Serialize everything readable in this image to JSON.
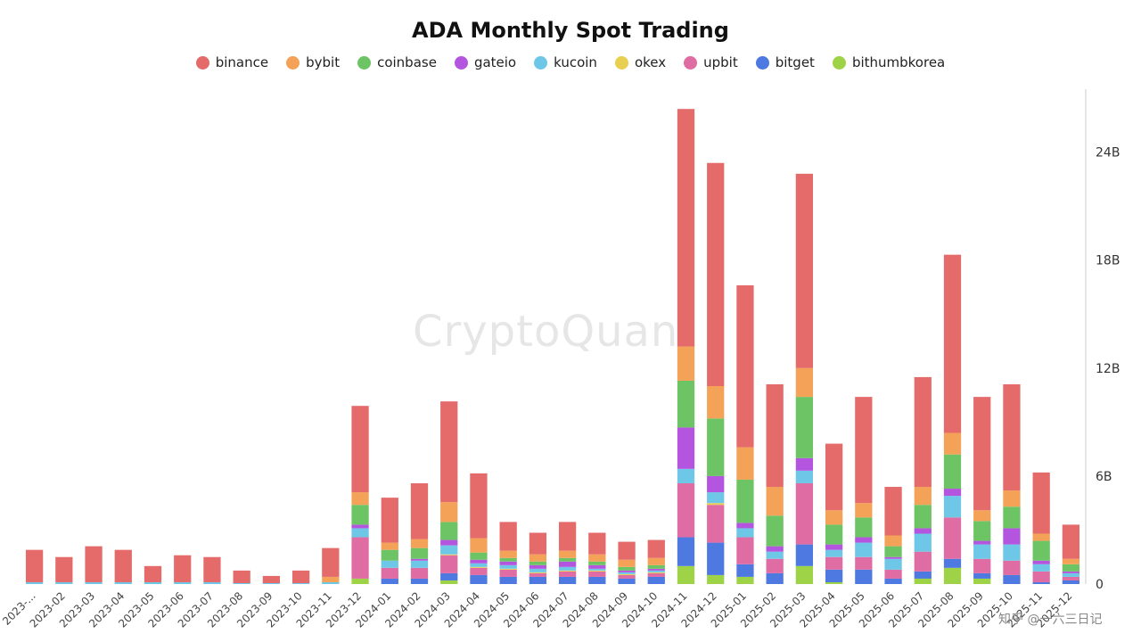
{
  "chart_data": {
    "type": "bar",
    "stacked": true,
    "title": "ADA Monthly Spot Trading",
    "categories": [
      "2023-...",
      "2023-02",
      "2023-03",
      "2023-04",
      "2023-05",
      "2023-06",
      "2023-07",
      "2023-08",
      "2023-09",
      "2023-10",
      "2023-11",
      "2023-12",
      "2024-01",
      "2024-02",
      "2024-03",
      "2024-04",
      "2024-05",
      "2024-06",
      "2024-07",
      "2024-08",
      "2024-09",
      "2024-10",
      "2024-11",
      "2024-12",
      "2025-01",
      "2025-02",
      "2025-03",
      "2025-04",
      "2025-05",
      "2025-06",
      "2025-07",
      "2025-08",
      "2025-09",
      "2025-10",
      "2025-11",
      "2025-12"
    ],
    "ylim": [
      0,
      27.5
    ],
    "ytick_values": [
      0,
      6,
      12,
      18,
      24
    ],
    "ytick_labels": [
      "0",
      "6B",
      "12B",
      "18B",
      "24B"
    ],
    "y_axis_side": "right",
    "legend_position": "top-center",
    "grid": false,
    "series": [
      {
        "name": "bithumbkorea",
        "color": "#9ed247",
        "values": [
          0,
          0,
          0,
          0,
          0,
          0,
          0,
          0,
          0,
          0,
          0,
          0.3,
          0,
          0,
          0.2,
          0,
          0,
          0,
          0,
          0,
          0,
          0,
          1.0,
          0.5,
          0.4,
          0,
          1.0,
          0.1,
          0,
          0,
          0.3,
          0.9,
          0.3,
          0,
          0,
          0
        ]
      },
      {
        "name": "bitget",
        "color": "#4d79e0",
        "values": [
          0,
          0,
          0,
          0,
          0,
          0,
          0,
          0,
          0,
          0,
          0,
          0,
          0.3,
          0.3,
          0.4,
          0.5,
          0.4,
          0.4,
          0.4,
          0.4,
          0.3,
          0.4,
          1.6,
          1.8,
          0.7,
          0.6,
          1.2,
          0.7,
          0.8,
          0.3,
          0.4,
          0.5,
          0.3,
          0.5,
          0.1,
          0.2
        ]
      },
      {
        "name": "upbit",
        "color": "#e06ca4",
        "values": [
          0,
          0,
          0,
          0,
          0,
          0,
          0,
          0,
          0,
          0,
          0,
          2.3,
          0.6,
          0.6,
          1.0,
          0.4,
          0.4,
          0.2,
          0.3,
          0.3,
          0.2,
          0.2,
          3.0,
          2.1,
          1.5,
          0.8,
          3.4,
          0.7,
          0.7,
          0.5,
          1.1,
          2.3,
          0.8,
          0.8,
          0.6,
          0.2
        ]
      },
      {
        "name": "okex",
        "color": "#e8cf50",
        "values": [
          0,
          0,
          0,
          0,
          0,
          0,
          0,
          0,
          0,
          0,
          0,
          0,
          0,
          0,
          0.05,
          0.05,
          0.05,
          0.05,
          0.05,
          0.05,
          0.05,
          0.05,
          0,
          0.1,
          0,
          0,
          0,
          0,
          0,
          0,
          0,
          0,
          0,
          0,
          0,
          0
        ]
      },
      {
        "name": "kucoin",
        "color": "#6ec7e6",
        "values": [
          0.1,
          0.1,
          0.1,
          0.1,
          0.1,
          0.1,
          0.1,
          0.05,
          0.05,
          0.05,
          0.1,
          0.5,
          0.4,
          0.4,
          0.5,
          0.2,
          0.2,
          0.2,
          0.2,
          0.1,
          0.1,
          0.1,
          0.8,
          0.6,
          0.5,
          0.4,
          0.7,
          0.4,
          0.8,
          0.6,
          1.0,
          1.2,
          0.8,
          0.9,
          0.4,
          0.2
        ]
      },
      {
        "name": "gateio",
        "color": "#b455e0",
        "values": [
          0,
          0,
          0,
          0,
          0,
          0,
          0,
          0,
          0,
          0,
          0,
          0.2,
          0,
          0.1,
          0.3,
          0.2,
          0.2,
          0.2,
          0.3,
          0.2,
          0.1,
          0.1,
          2.3,
          0.9,
          0.3,
          0.3,
          0.7,
          0.3,
          0.3,
          0.1,
          0.3,
          0.4,
          0.2,
          0.9,
          0.2,
          0.1
        ]
      },
      {
        "name": "coinbase",
        "color": "#6dc464",
        "values": [
          0,
          0,
          0,
          0,
          0,
          0,
          0,
          0,
          0,
          0,
          0,
          1.1,
          0.6,
          0.6,
          1.0,
          0.4,
          0.2,
          0.2,
          0.2,
          0.2,
          0.2,
          0.2,
          2.6,
          3.2,
          2.4,
          1.7,
          3.4,
          1.1,
          1.1,
          0.6,
          1.3,
          1.9,
          1.1,
          1.2,
          1.1,
          0.4
        ]
      },
      {
        "name": "bybit",
        "color": "#f4a258",
        "values": [
          0,
          0,
          0,
          0,
          0,
          0,
          0,
          0,
          0,
          0,
          0.3,
          0.7,
          0.4,
          0.5,
          1.1,
          0.8,
          0.4,
          0.4,
          0.4,
          0.4,
          0.4,
          0.4,
          1.9,
          1.8,
          1.8,
          1.6,
          1.6,
          0.8,
          0.8,
          0.6,
          1.0,
          1.2,
          0.6,
          0.9,
          0.4,
          0.3
        ]
      },
      {
        "name": "binance",
        "color": "#e56b6b",
        "values": [
          1.8,
          1.4,
          2.0,
          1.8,
          0.9,
          1.5,
          1.4,
          0.7,
          0.4,
          0.7,
          1.6,
          4.8,
          2.5,
          3.1,
          5.6,
          3.6,
          1.6,
          1.2,
          1.6,
          1.2,
          1.0,
          1.0,
          13.2,
          12.4,
          9.0,
          5.7,
          10.8,
          3.7,
          5.9,
          2.7,
          6.1,
          9.9,
          6.3,
          5.9,
          3.4,
          1.9
        ]
      }
    ]
  },
  "legend": [
    {
      "label": "binance",
      "color": "#e56b6b"
    },
    {
      "label": "bybit",
      "color": "#f4a258"
    },
    {
      "label": "coinbase",
      "color": "#6dc464"
    },
    {
      "label": "gateio",
      "color": "#b455e0"
    },
    {
      "label": "kucoin",
      "color": "#6ec7e6"
    },
    {
      "label": "okex",
      "color": "#e8cf50"
    },
    {
      "label": "upbit",
      "color": "#e06ca4"
    },
    {
      "label": "bitget",
      "color": "#4d79e0"
    },
    {
      "label": "bithumbkorea",
      "color": "#9ed247"
    }
  ],
  "watermark": "CryptoQuant",
  "footer_right": "知乎 @一六三日记"
}
